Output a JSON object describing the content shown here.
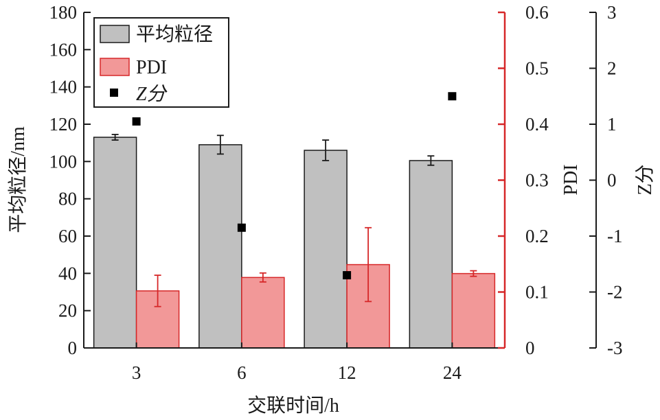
{
  "chart_data": {
    "type": "bar",
    "categories": [
      "3",
      "6",
      "12",
      "24"
    ],
    "xlabel": "交联时间/h",
    "axes": {
      "left": {
        "label": "平均粒径/nm",
        "range": [
          0,
          180
        ],
        "ticks": [
          0,
          20,
          40,
          60,
          80,
          100,
          120,
          140,
          160,
          180
        ]
      },
      "right1": {
        "label": "PDI",
        "range": [
          0,
          0.6
        ],
        "ticks": [
          "0",
          "0.1",
          "0.2",
          "0.3",
          "0.4",
          "0.5",
          "0.6"
        ],
        "color": "#d62728"
      },
      "right2": {
        "label": "Z分",
        "range": [
          -3,
          3
        ],
        "ticks": [
          "-3",
          "-2",
          "-1",
          "0",
          "1",
          "2",
          "3"
        ]
      }
    },
    "series": [
      {
        "name": "平均粒径",
        "axis": "left",
        "kind": "bar",
        "values": [
          113,
          109,
          106,
          100.5
        ],
        "errors": [
          1.5,
          5,
          5.5,
          2.5
        ],
        "fill": "#c0c0c0",
        "stroke": "#1a1a1a"
      },
      {
        "name": "PDI",
        "axis": "right1",
        "kind": "bar",
        "values": [
          0.102,
          0.126,
          0.149,
          0.133
        ],
        "errors": [
          0.028,
          0.008,
          0.066,
          0.005
        ],
        "fill": "#f29898",
        "stroke": "#d62728"
      },
      {
        "name": "Z分",
        "axis": "right2",
        "kind": "scatter",
        "marker": "square",
        "values": [
          1.05,
          -0.85,
          -1.7,
          1.5
        ],
        "color": "#000000"
      }
    ],
    "legend": {
      "position": "top-left"
    },
    "grid": false
  }
}
